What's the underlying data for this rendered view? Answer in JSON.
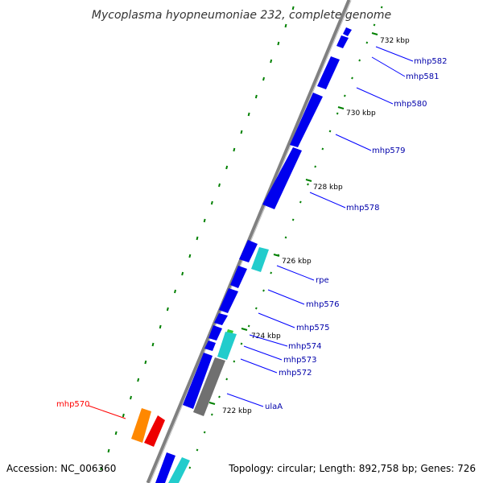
{
  "title": "Mycoplasma hyopneumoniae 232, complete genome",
  "footer": {
    "accession": "Accession: NC_006360",
    "summary": "Topology: circular; Length: 892,758 bp; Genes: 726"
  },
  "colors": {
    "backbone": "#808080",
    "forward_gene": "#0000ff",
    "reverse_gene": "#0000ff",
    "tick": "#008000",
    "label": "#0000aa",
    "highlight_label": "#ff0000"
  },
  "scale_labels": [
    "732 kbp",
    "730 kbp",
    "728 kbp",
    "726 kbp",
    "724 kbp",
    "722 kbp"
  ],
  "genes": [
    {
      "name": "mhp582",
      "color": "#0000aa"
    },
    {
      "name": "mhp581",
      "color": "#0000aa"
    },
    {
      "name": "mhp580",
      "color": "#0000aa"
    },
    {
      "name": "mhp579",
      "color": "#0000aa"
    },
    {
      "name": "mhp578",
      "color": "#0000aa"
    },
    {
      "name": "rpe",
      "color": "#0000aa"
    },
    {
      "name": "mhp576",
      "color": "#0000aa"
    },
    {
      "name": "mhp575",
      "color": "#0000aa"
    },
    {
      "name": "mhp574",
      "color": "#0000aa"
    },
    {
      "name": "mhp573",
      "color": "#0000aa"
    },
    {
      "name": "mhp572",
      "color": "#0000aa"
    },
    {
      "name": "ulaA",
      "color": "#0000aa"
    },
    {
      "name": "mhp570",
      "color": "#ff0000"
    }
  ]
}
